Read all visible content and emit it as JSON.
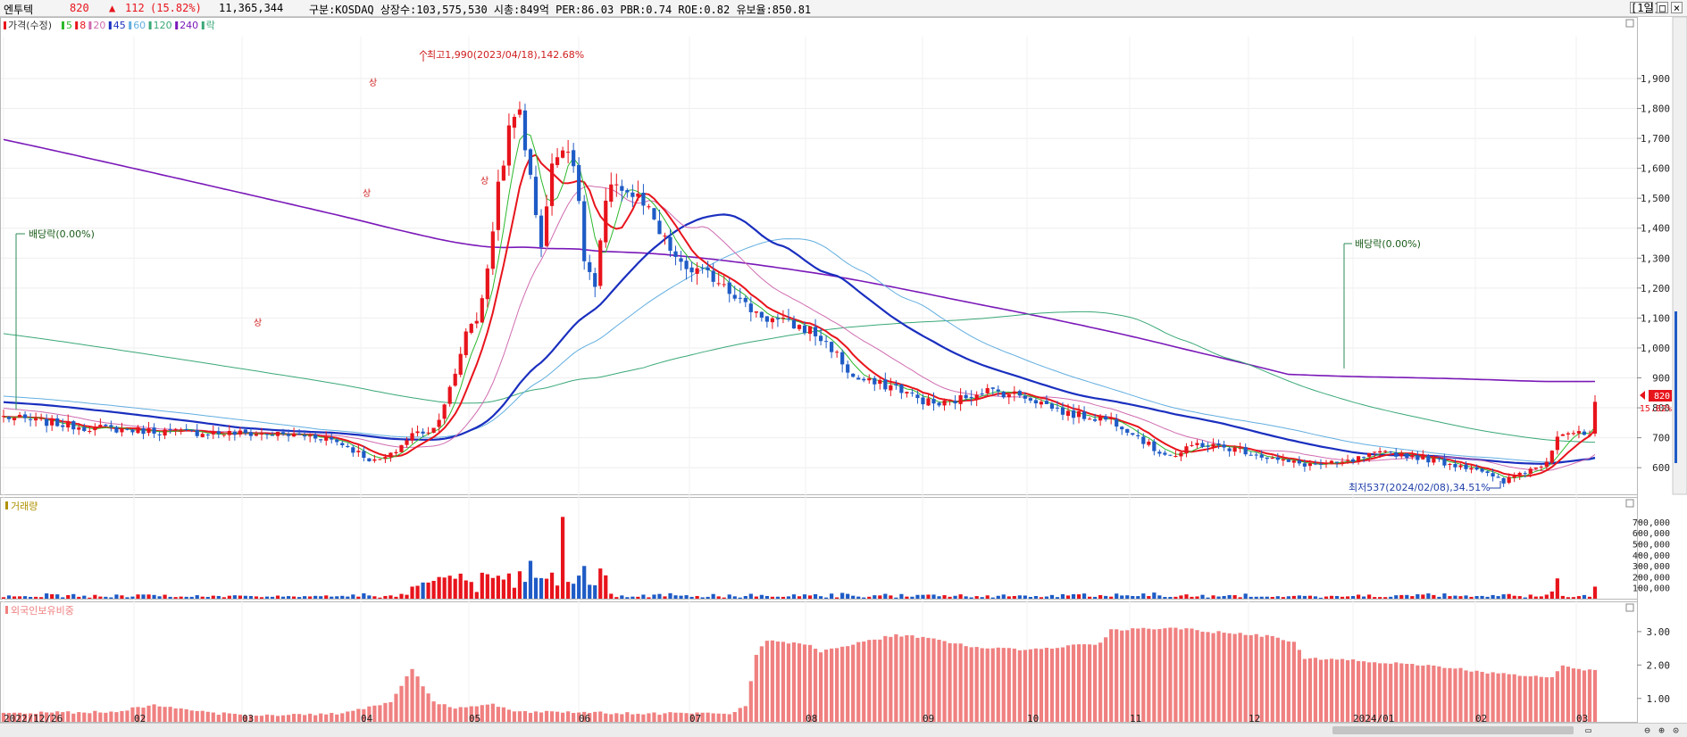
{
  "header": {
    "name": "엔투텍",
    "price": "820",
    "arrow": "▲",
    "change": "112",
    "change_pct": "(15.82%)",
    "volume": "11,365,344",
    "info": "구분:KOSDAQ 상장수:103,575,530 시총:849억 PER:86.03 PBR:0.74 ROE:0.82 유보율:850.81",
    "period_button": "[1일]"
  },
  "colors": {
    "up": "#e8141c",
    "down": "#1e5bc6",
    "ma5": "#2db82d",
    "ma8": "#e8141c",
    "ma20": "#d06cb0",
    "ma45": "#1a2fbf",
    "ma60": "#62aee0",
    "ma120": "#3aa878",
    "ma240": "#7a18b8",
    "volume_label": "#b09000",
    "foreign": "#f08080"
  },
  "price_legend": [
    {
      "label": "가격(수정)",
      "color": "#e8141c"
    },
    {
      "label": "5",
      "color": "#2db82d"
    },
    {
      "label": "8",
      "color": "#e8141c"
    },
    {
      "label": "20",
      "color": "#d06cb0"
    },
    {
      "label": "45",
      "color": "#1a2fbf"
    },
    {
      "label": "60",
      "color": "#62aee0"
    },
    {
      "label": "120",
      "color": "#3aa878"
    },
    {
      "label": "240",
      "color": "#7a18b8"
    },
    {
      "label": "락",
      "color": "#3aa878"
    }
  ],
  "volume_panel_label": "거래량",
  "foreign_panel_label": "외국인보유비중",
  "annotations": {
    "high": "최고1,990(2023/04/18),142.68%",
    "low": "최저537(2024/02/08),34.51%",
    "dividend1": "배당락(0.00%)",
    "dividend2": "배당락(0.00%)",
    "limit_up1": "상",
    "limit_up2": "상",
    "limit_up3": "상"
  },
  "last_price_tag": {
    "price": "820",
    "pct": "15.82%"
  },
  "chart_data": [
    {
      "type": "candlestick",
      "ylim": [
        520,
        2040
      ],
      "y_ticks": [
        600,
        700,
        800,
        900,
        1000,
        1100,
        1200,
        1300,
        1400,
        1500,
        1600,
        1700,
        1800,
        1900
      ],
      "y_tick_labels": [
        "600",
        "700",
        "800",
        "900",
        "1,000",
        "1,100",
        "1,200",
        "1,300",
        "1,400",
        "1,500",
        "1,600",
        "1,700",
        "1,800",
        "1,900"
      ],
      "x_labels": [
        "2022/12/26",
        "02",
        "03",
        "04",
        "05",
        "06",
        "07",
        "08",
        "09",
        "10",
        "11",
        "12",
        "2024/01",
        "02",
        "03"
      ],
      "close_path": [
        [
          0,
          770
        ],
        [
          15,
          735
        ],
        [
          25,
          725
        ],
        [
          35,
          718
        ],
        [
          50,
          712
        ],
        [
          57,
          706
        ],
        [
          60,
          700
        ],
        [
          63,
          680
        ],
        [
          66,
          650
        ],
        [
          69,
          620
        ],
        [
          72,
          640
        ],
        [
          76,
          712
        ],
        [
          80,
          730
        ],
        [
          84,
          905
        ],
        [
          86,
          1060
        ],
        [
          88,
          1100
        ],
        [
          90,
          1250
        ],
        [
          92,
          1550
        ],
        [
          94,
          1720
        ],
        [
          96,
          1800
        ],
        [
          98,
          1560
        ],
        [
          100,
          1350
        ],
        [
          102,
          1600
        ],
        [
          104,
          1690
        ],
        [
          106,
          1630
        ],
        [
          108,
          1300
        ],
        [
          110,
          1200
        ],
        [
          112,
          1480
        ],
        [
          114,
          1560
        ],
        [
          116,
          1520
        ],
        [
          118,
          1500
        ],
        [
          120,
          1450
        ],
        [
          122,
          1380
        ],
        [
          124,
          1330
        ],
        [
          126,
          1270
        ],
        [
          130,
          1250
        ],
        [
          134,
          1220
        ],
        [
          138,
          1140
        ],
        [
          142,
          1100
        ],
        [
          146,
          1080
        ],
        [
          150,
          1060
        ],
        [
          154,
          1000
        ],
        [
          158,
          900
        ],
        [
          162,
          880
        ],
        [
          166,
          870
        ],
        [
          170,
          830
        ],
        [
          174,
          810
        ],
        [
          178,
          830
        ],
        [
          182,
          860
        ],
        [
          186,
          850
        ],
        [
          190,
          840
        ],
        [
          194,
          810
        ],
        [
          198,
          780
        ],
        [
          202,
          770
        ],
        [
          206,
          760
        ],
        [
          210,
          720
        ],
        [
          214,
          660
        ],
        [
          218,
          640
        ],
        [
          222,
          680
        ],
        [
          226,
          670
        ],
        [
          230,
          660
        ],
        [
          234,
          640
        ],
        [
          238,
          620
        ],
        [
          242,
          612
        ],
        [
          246,
          610
        ],
        [
          250,
          618
        ],
        [
          254,
          640
        ],
        [
          258,
          650
        ],
        [
          262,
          640
        ],
        [
          266,
          625
        ],
        [
          270,
          610
        ],
        [
          274,
          600
        ],
        [
          277,
          565
        ],
        [
          279,
          550
        ],
        [
          281,
          575
        ],
        [
          283,
          590
        ],
        [
          285,
          600
        ],
        [
          287,
          625
        ],
        [
          289,
          712
        ],
        [
          291,
          720
        ],
        [
          293,
          710
        ],
        [
          295,
          708
        ],
        [
          296,
          820
        ]
      ],
      "volume_ylim": [
        0,
        780000
      ],
      "volume_y_ticks": [
        100000,
        200000,
        300000,
        400000,
        500000,
        600000,
        700000
      ],
      "volume_y_tick_labels": [
        "100,000",
        "200,000",
        "300,000",
        "400,000",
        "500,000",
        "600,000",
        "700,000"
      ],
      "foreign_ylim": [
        0.3,
        3.45
      ],
      "foreign_y_ticks": [
        1,
        2,
        3
      ],
      "foreign_y_tick_labels": [
        "1.00",
        "2.00",
        "3.00"
      ],
      "foreign_path": [
        [
          0,
          0.55
        ],
        [
          20,
          0.6
        ],
        [
          28,
          0.8
        ],
        [
          35,
          0.65
        ],
        [
          40,
          0.55
        ],
        [
          50,
          0.5
        ],
        [
          62,
          0.55
        ],
        [
          68,
          0.75
        ],
        [
          72,
          0.9
        ],
        [
          76,
          1.9
        ],
        [
          80,
          0.9
        ],
        [
          84,
          0.7
        ],
        [
          90,
          0.85
        ],
        [
          96,
          0.6
        ],
        [
          120,
          0.55
        ],
        [
          135,
          0.55
        ],
        [
          138,
          0.8
        ],
        [
          140,
          2.3
        ],
        [
          142,
          2.75
        ],
        [
          150,
          2.6
        ],
        [
          152,
          2.4
        ],
        [
          160,
          2.7
        ],
        [
          166,
          2.9
        ],
        [
          172,
          2.8
        ],
        [
          180,
          2.55
        ],
        [
          190,
          2.45
        ],
        [
          200,
          2.6
        ],
        [
          204,
          2.65
        ],
        [
          206,
          3.05
        ],
        [
          214,
          3.1
        ],
        [
          220,
          3.1
        ],
        [
          224,
          3.0
        ],
        [
          230,
          2.95
        ],
        [
          236,
          2.85
        ],
        [
          240,
          2.7
        ],
        [
          242,
          2.2
        ],
        [
          250,
          2.15
        ],
        [
          260,
          2.05
        ],
        [
          268,
          1.95
        ],
        [
          272,
          1.85
        ],
        [
          276,
          1.75
        ],
        [
          284,
          1.7
        ],
        [
          288,
          1.65
        ],
        [
          290,
          1.95
        ],
        [
          294,
          1.85
        ],
        [
          296,
          1.85
        ]
      ]
    }
  ]
}
